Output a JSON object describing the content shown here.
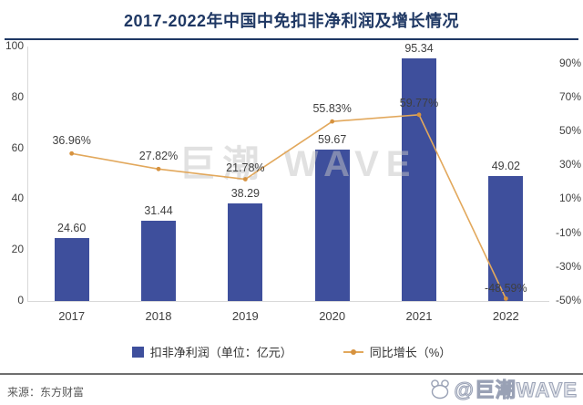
{
  "title": "2017-2022年中国中免扣非净利润及增长情况",
  "source": "来源：东方财富",
  "watermark_center": "巨潮 WAVE",
  "watermark_badge": "@巨潮WAVE",
  "colors": {
    "bar": "#3E4F9C",
    "line": "#E2A85C",
    "line_marker": "#D6923F",
    "title": "#1F3864",
    "axis_text": "#404040",
    "label_text": "#3F3F3F",
    "separator": "#6F6F6F",
    "source_text": "#595959",
    "watermark": "#C3C3C3"
  },
  "legend": [
    {
      "label": "扣非净利润（单位：亿元）",
      "type": "bar"
    },
    {
      "label": "同比增长（%）",
      "type": "line"
    }
  ],
  "chart_data": {
    "type": "bar+line",
    "title": "2017-2022年中国中免扣非净利润及增长情况",
    "categories": [
      "2017",
      "2018",
      "2019",
      "2020",
      "2021",
      "2022"
    ],
    "series": [
      {
        "name": "扣非净利润（单位：亿元）",
        "type": "bar",
        "axis": "left",
        "values": [
          24.6,
          31.44,
          38.29,
          59.67,
          95.34,
          49.02
        ],
        "labels": [
          "24.60",
          "31.44",
          "38.29",
          "59.67",
          "95.34",
          "49.02"
        ]
      },
      {
        "name": "同比增长（%）",
        "type": "line",
        "axis": "right",
        "values": [
          36.96,
          27.82,
          21.78,
          55.83,
          59.77,
          -48.59
        ],
        "labels": [
          "36.96%",
          "27.82%",
          "21.78%",
          "55.83%",
          "59.77%",
          "-48.59%"
        ]
      }
    ],
    "left_axis": {
      "min": 0,
      "max": 100,
      "tick_values": [
        0,
        20,
        40,
        60,
        80,
        100
      ],
      "tick_labels": [
        "0",
        "20",
        "40",
        "60",
        "80",
        "100"
      ]
    },
    "right_axis": {
      "min": -50,
      "max": 100,
      "tick_values": [
        90,
        70,
        50,
        30,
        10,
        -10,
        -30,
        -50
      ],
      "tick_labels": [
        "90%",
        "70%",
        "50%",
        "30%",
        "10%",
        "-10%",
        "-30%",
        "-50%"
      ]
    },
    "grid": false,
    "legend_position": "bottom"
  }
}
